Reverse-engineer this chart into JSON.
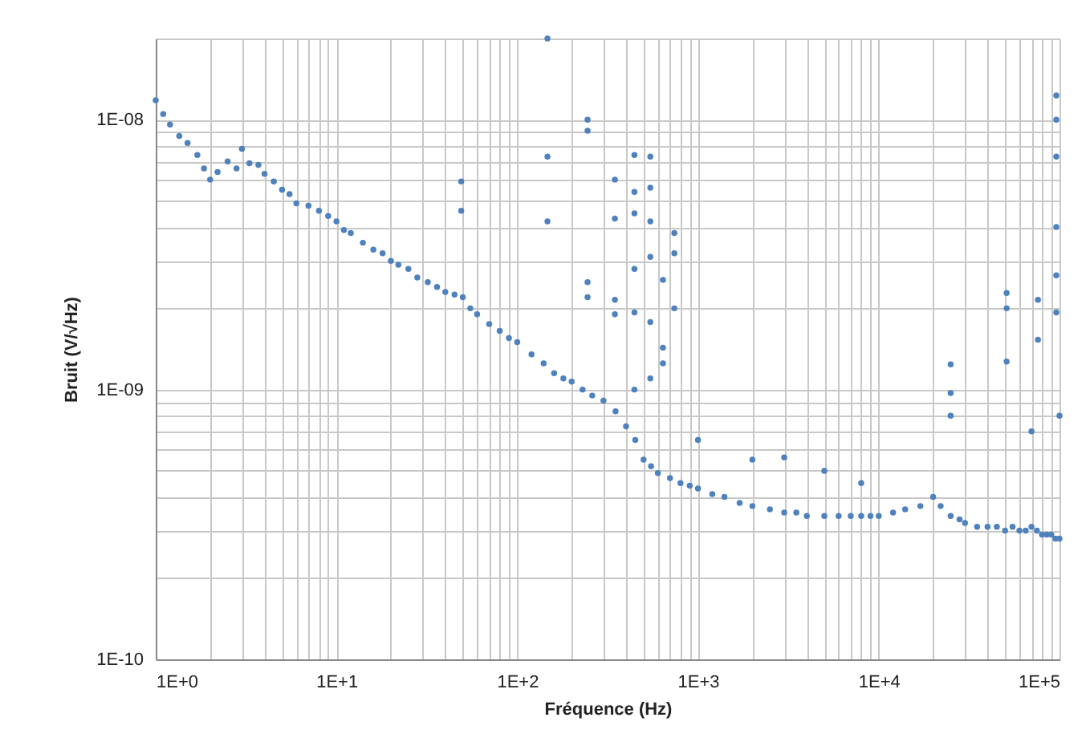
{
  "chart_data": {
    "type": "scatter",
    "xlabel": "Fréquence (Hz)",
    "ylabel": "Bruit (V/√Hz)",
    "log": "xy",
    "grid": true,
    "marker": "circle",
    "legend": false,
    "xlim": [
      1,
      100000
    ],
    "ylim": [
      1e-10,
      2e-08
    ],
    "xticks": [
      {
        "value": 1,
        "label": "1E+0"
      },
      {
        "value": 2,
        "label": null
      },
      {
        "value": 3,
        "label": null
      },
      {
        "value": 4,
        "label": null
      },
      {
        "value": 5,
        "label": null
      },
      {
        "value": 6,
        "label": null
      },
      {
        "value": 7,
        "label": null
      },
      {
        "value": 8,
        "label": null
      },
      {
        "value": 9,
        "label": null
      },
      {
        "value": 10,
        "label": "1E+1"
      },
      {
        "value": 20,
        "label": null
      },
      {
        "value": 30,
        "label": null
      },
      {
        "value": 40,
        "label": null
      },
      {
        "value": 50,
        "label": null
      },
      {
        "value": 60,
        "label": null
      },
      {
        "value": 70,
        "label": null
      },
      {
        "value": 80,
        "label": null
      },
      {
        "value": 90,
        "label": null
      },
      {
        "value": 100,
        "label": "1E+2"
      },
      {
        "value": 200,
        "label": null
      },
      {
        "value": 300,
        "label": null
      },
      {
        "value": 400,
        "label": null
      },
      {
        "value": 500,
        "label": null
      },
      {
        "value": 600,
        "label": null
      },
      {
        "value": 700,
        "label": null
      },
      {
        "value": 800,
        "label": null
      },
      {
        "value": 900,
        "label": null
      },
      {
        "value": 1000,
        "label": "1E+3"
      },
      {
        "value": 2000,
        "label": null
      },
      {
        "value": 3000,
        "label": null
      },
      {
        "value": 4000,
        "label": null
      },
      {
        "value": 5000,
        "label": null
      },
      {
        "value": 6000,
        "label": null
      },
      {
        "value": 7000,
        "label": null
      },
      {
        "value": 8000,
        "label": null
      },
      {
        "value": 9000,
        "label": null
      },
      {
        "value": 10000,
        "label": "1E+4"
      },
      {
        "value": 20000,
        "label": null
      },
      {
        "value": 30000,
        "label": null
      },
      {
        "value": 40000,
        "label": null
      },
      {
        "value": 50000,
        "label": null
      },
      {
        "value": 60000,
        "label": null
      },
      {
        "value": 70000,
        "label": null
      },
      {
        "value": 80000,
        "label": null
      },
      {
        "value": 90000,
        "label": null
      },
      {
        "value": 100000,
        "label": "1E+5"
      }
    ],
    "yticks": [
      {
        "value": 1e-10,
        "label": "1E-10"
      },
      {
        "value": 2e-10,
        "label": null
      },
      {
        "value": 3e-10,
        "label": null
      },
      {
        "value": 4e-10,
        "label": null
      },
      {
        "value": 5e-10,
        "label": null
      },
      {
        "value": 6e-10,
        "label": null
      },
      {
        "value": 7e-10,
        "label": null
      },
      {
        "value": 8e-10,
        "label": null
      },
      {
        "value": 9e-10,
        "label": null
      },
      {
        "value": 1e-09,
        "label": "1E-09"
      },
      {
        "value": 2e-09,
        "label": null
      },
      {
        "value": 3e-09,
        "label": null
      },
      {
        "value": 4e-09,
        "label": null
      },
      {
        "value": 5e-09,
        "label": null
      },
      {
        "value": 6e-09,
        "label": null
      },
      {
        "value": 7e-09,
        "label": null
      },
      {
        "value": 8e-09,
        "label": null
      },
      {
        "value": 9e-09,
        "label": null
      },
      {
        "value": 1e-08,
        "label": "1E-08"
      },
      {
        "value": 2e-08,
        "label": null
      }
    ],
    "series": [
      {
        "color": "#4f81bd",
        "x": [
          1,
          1.1,
          1.2,
          1.35,
          1.5,
          1.7,
          1.85,
          2,
          2.2,
          2.5,
          2.8,
          3,
          3.3,
          3.7,
          4,
          4.5,
          5,
          5.5,
          6,
          7,
          8,
          9,
          10,
          11,
          12,
          14,
          16,
          18,
          20,
          22,
          25,
          28,
          32,
          36,
          40,
          45,
          50,
          55,
          60,
          70,
          80,
          90,
          100,
          120,
          140,
          160,
          180,
          200,
          230,
          260,
          300,
          350,
          400,
          450,
          500,
          550,
          600,
          700,
          800,
          900,
          1000,
          1200,
          1400,
          1700,
          2000,
          2500,
          3000,
          3500,
          4000,
          5000,
          6000,
          7000,
          8000,
          9000,
          10000,
          12000,
          14000,
          17000,
          20000,
          22000,
          25000,
          28000,
          30000,
          35000,
          40000,
          45000,
          50000,
          55000,
          60000,
          65000,
          70000,
          75000,
          80000,
          85000,
          90000,
          95000,
          100000,
          49,
          49,
          147,
          147,
          147,
          245,
          245,
          245,
          245,
          347,
          347,
          347,
          347,
          445,
          445,
          445,
          445,
          445,
          445,
          545,
          545,
          545,
          545,
          545,
          545,
          640,
          640,
          640,
          740,
          740,
          740,
          1000,
          2000,
          3000,
          5000,
          8000,
          25000,
          25000,
          25000,
          51000,
          51000,
          51000,
          70000,
          76000,
          76000,
          96000,
          96000,
          96000,
          96000,
          96000,
          96000,
          100000
        ],
        "values": [
          1.18e-08,
          1.05e-08,
          9.6e-09,
          8.7e-09,
          8.2e-09,
          7.4e-09,
          6.6e-09,
          6e-09,
          6.4e-09,
          7e-09,
          6.6e-09,
          7.8e-09,
          6.9e-09,
          6.8e-09,
          6.3e-09,
          5.9e-09,
          5.5e-09,
          5.3e-09,
          4.9e-09,
          4.8e-09,
          4.6e-09,
          4.4e-09,
          4.2e-09,
          3.9e-09,
          3.8e-09,
          3.5e-09,
          3.3e-09,
          3.2e-09,
          3e-09,
          2.9e-09,
          2.8e-09,
          2.6e-09,
          2.5e-09,
          2.4e-09,
          2.3e-09,
          2.25e-09,
          2.2e-09,
          2e-09,
          1.9e-09,
          1.75e-09,
          1.65e-09,
          1.55e-09,
          1.5e-09,
          1.35e-09,
          1.25e-09,
          1.15e-09,
          1.1e-09,
          1.07e-09,
          1e-09,
          9.5e-10,
          9.1e-10,
          8.3e-10,
          7.3e-10,
          6.5e-10,
          5.5e-10,
          5.2e-10,
          4.9e-10,
          4.7e-10,
          4.5e-10,
          4.4e-10,
          4.3e-10,
          4.1e-10,
          4e-10,
          3.8e-10,
          3.7e-10,
          3.6e-10,
          3.5e-10,
          3.5e-10,
          3.4e-10,
          3.4e-10,
          3.4e-10,
          3.4e-10,
          3.4e-10,
          3.4e-10,
          3.4e-10,
          3.5e-10,
          3.6e-10,
          3.7e-10,
          4e-10,
          3.7e-10,
          3.4e-10,
          3.3e-10,
          3.2e-10,
          3.1e-10,
          3.1e-10,
          3.1e-10,
          3e-10,
          3.1e-10,
          3e-10,
          3e-10,
          3.1e-10,
          3e-10,
          2.9e-10,
          2.9e-10,
          2.9e-10,
          2.8e-10,
          2.8e-10,
          5.9e-09,
          4.6e-09,
          2e-08,
          7.3e-09,
          4.2e-09,
          1e-08,
          9.1e-09,
          2.5e-09,
          2.2e-09,
          6e-09,
          4.3e-09,
          2.15e-09,
          1.9e-09,
          7.4e-09,
          5.4e-09,
          4.5e-09,
          2.8e-09,
          1.93e-09,
          1e-09,
          7.3e-09,
          5.6e-09,
          4.2e-09,
          3.1e-09,
          1.78e-09,
          1.1e-09,
          2.55e-09,
          1.43e-09,
          1.25e-09,
          3.8e-09,
          3.2e-09,
          2e-09,
          6.5e-10,
          5.5e-10,
          5.6e-10,
          5e-10,
          4.5e-10,
          1.24e-09,
          9.7e-10,
          8e-10,
          2.28e-09,
          2e-09,
          1.27e-09,
          7e-10,
          2.15e-09,
          1.53e-09,
          1.23e-08,
          1e-08,
          7.3e-09,
          4e-09,
          2.65e-09,
          1.93e-09,
          8e-10
        ]
      }
    ]
  }
}
